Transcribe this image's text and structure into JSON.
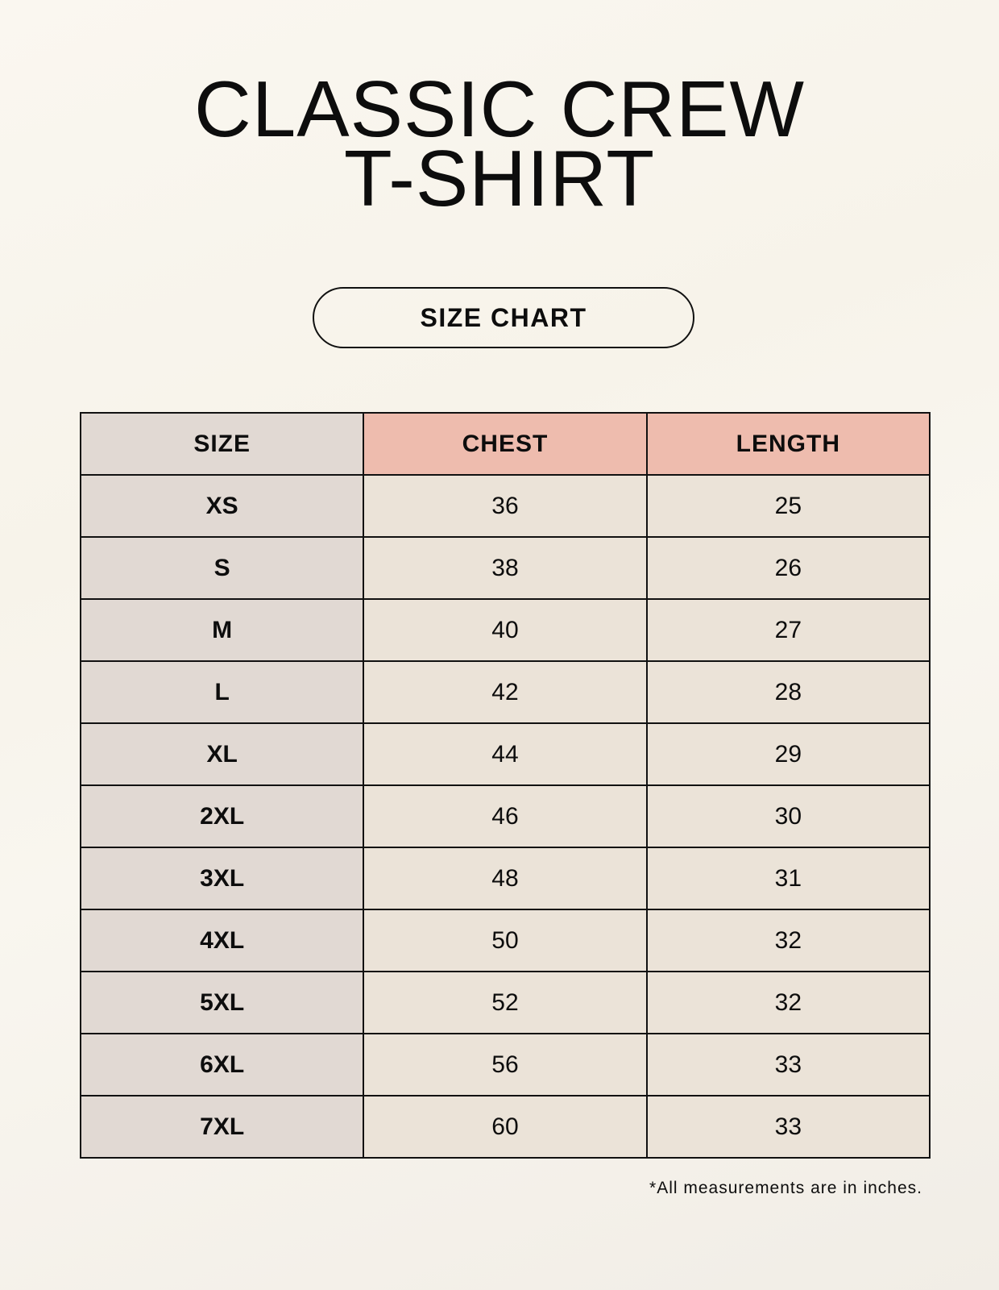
{
  "title": {
    "line1": "CLASSIC CREW",
    "line2": "T-SHIRT"
  },
  "badge": "SIZE CHART",
  "table": {
    "headers": [
      "SIZE",
      "CHEST",
      "LENGTH"
    ],
    "rows": [
      [
        "XS",
        "36",
        "25"
      ],
      [
        "S",
        "38",
        "26"
      ],
      [
        "M",
        "40",
        "27"
      ],
      [
        "L",
        "42",
        "28"
      ],
      [
        "XL",
        "44",
        "29"
      ],
      [
        "2XL",
        "46",
        "30"
      ],
      [
        "3XL",
        "48",
        "31"
      ],
      [
        "4XL",
        "50",
        "32"
      ],
      [
        "5XL",
        "52",
        "32"
      ],
      [
        "6XL",
        "56",
        "33"
      ],
      [
        "7XL",
        "60",
        "33"
      ]
    ]
  },
  "footnote": "*All measurements are in inches.",
  "colors": {
    "header_accent": "#eebcae",
    "size_column": "#e1d9d3",
    "value_cells": "#ebe3d8"
  }
}
